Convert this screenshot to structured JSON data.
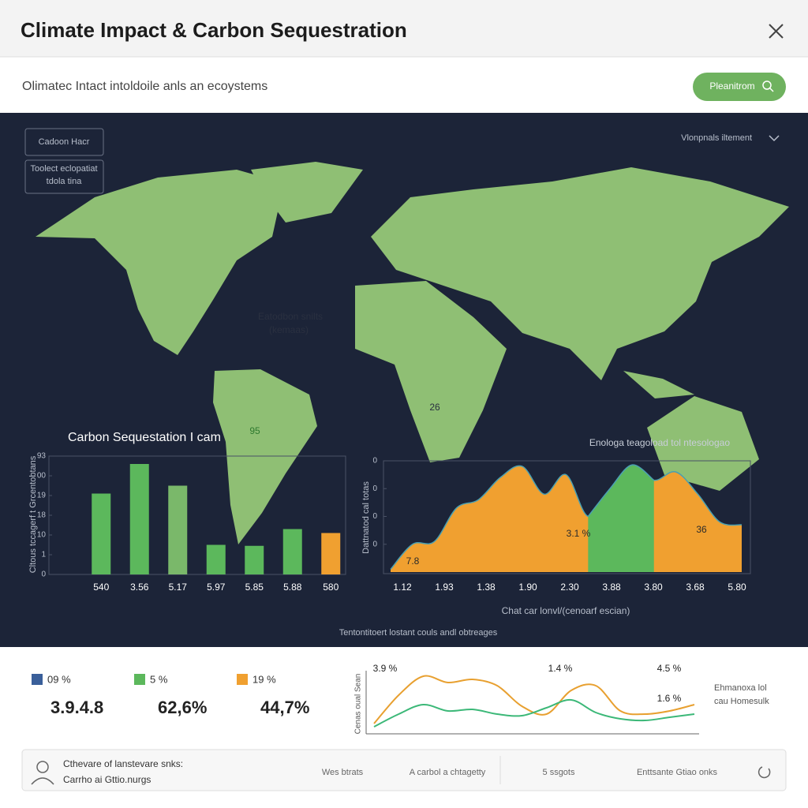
{
  "header": {
    "title": "Climate Impact & Carbon Sequestration"
  },
  "subheader": {
    "text": "Olimatec Intact intoldoile anls an ecoystems",
    "button": "Pleanitrom"
  },
  "map_panel": {
    "box1": "Cadoon Hacr",
    "box2_line1": "Toolect eclopatiat",
    "box2_line2": "tdola tina",
    "dropdown": "Vlonpnals iltement",
    "map_label_line1": "Eatodbon snilts",
    "map_label_line2": "(kemaas)",
    "map_num1": "26",
    "map_num2": "95",
    "footnote": "Tentontitoert lostant couls andl obtreages"
  },
  "bar_chart": {
    "type": "bar",
    "title": "Carbon Sequestation I cam",
    "y_label": "Cltous tccagerf t Grcentobtans",
    "categories": [
      "540",
      "3.56",
      "5.17",
      "5.97",
      "5.85",
      "5.88",
      "580"
    ],
    "values": [
      4.1,
      5.6,
      4.5,
      1.5,
      1.45,
      2.3,
      2.1
    ],
    "colors": [
      "#5cb85c",
      "#5cb85c",
      "#7ab86a",
      "#5cb85c",
      "#5cb85c",
      "#5cb85c",
      "#f0a030"
    ],
    "ylim": [
      0,
      6
    ],
    "yticks": [
      {
        "value": 0,
        "label": "0"
      },
      {
        "value": 1,
        "label": "1"
      },
      {
        "value": 2,
        "label": "10"
      },
      {
        "value": 3,
        "label": "18"
      },
      {
        "value": 4,
        "label": "19"
      },
      {
        "value": 5,
        "label": "00"
      },
      {
        "value": 6,
        "label": "93"
      }
    ]
  },
  "area_chart": {
    "type": "area",
    "title": "Enologa teagoload tol ntesologao",
    "y_label": "Dattnatod cal totas",
    "x_label": "Chat car lonvl/(cenoarf escian)",
    "x_labels": [
      "1.12",
      "1.93",
      "1.38",
      "1.90",
      "2.30",
      "3.88",
      "3.80",
      "3.68",
      "5.80"
    ],
    "ylim": [
      0,
      4
    ],
    "yticks": [
      {
        "value": 1,
        "label": "0"
      },
      {
        "value": 2,
        "label": "0"
      },
      {
        "value": 3,
        "label": "0"
      },
      {
        "value": 4,
        "label": "0"
      }
    ],
    "series": [
      {
        "color": "#f0a030",
        "values": [
          0.1,
          1.0,
          1.1,
          2.3,
          2.6,
          3.4,
          3.8,
          2.8,
          3.5,
          2.0,
          3.0,
          3.85,
          3.3,
          3.6,
          2.8,
          1.8,
          1.7
        ]
      },
      {
        "color": "#5cb85c",
        "values": [
          null,
          null,
          null,
          null,
          null,
          null,
          null,
          null,
          null,
          2.0,
          3.0,
          3.85,
          3.3,
          null,
          null,
          null,
          null
        ]
      }
    ],
    "annotations": [
      "7.8",
      "3.1 %",
      "36"
    ]
  },
  "stats": {
    "legend": [
      {
        "color": "#3a5f9a",
        "label": "09 %"
      },
      {
        "color": "#5cb85c",
        "label": "5 %"
      },
      {
        "color": "#f0a030",
        "label": "19 %"
      }
    ],
    "numbers": [
      "3.9.4.8",
      "62,6%",
      "44,7%"
    ]
  },
  "line_chart": {
    "type": "line",
    "y_label": "Cenas oual Sean",
    "ylim": [
      0,
      4
    ],
    "series": [
      {
        "color": "#e8a030",
        "values": [
          0.4,
          2.2,
          3.4,
          3.0,
          3.2,
          2.8,
          1.5,
          1.0,
          2.5,
          2.8,
          1.2,
          1.0,
          1.2,
          1.6
        ]
      },
      {
        "color": "#3cb878",
        "values": [
          0.2,
          1.0,
          1.6,
          1.2,
          1.3,
          1.0,
          0.9,
          1.4,
          1.9,
          1.1,
          0.7,
          0.6,
          0.8,
          1.0
        ]
      }
    ],
    "labels": [
      "3.9 %",
      "1.4 %",
      "4.5 %",
      "1.6 %"
    ],
    "legend_line1": "Ehmanoxa lol",
    "legend_line2": "cau Homesulk"
  },
  "footer": {
    "user_line1": "Cthevare of lanstevare snks:",
    "user_line2": "Carrho ai Gttio.nurgs",
    "item1": "Wes btrats",
    "item2": "A carbol a chtagetty",
    "item3": "5 ssgots",
    "item4": "Enttsante Gtiao onks"
  }
}
